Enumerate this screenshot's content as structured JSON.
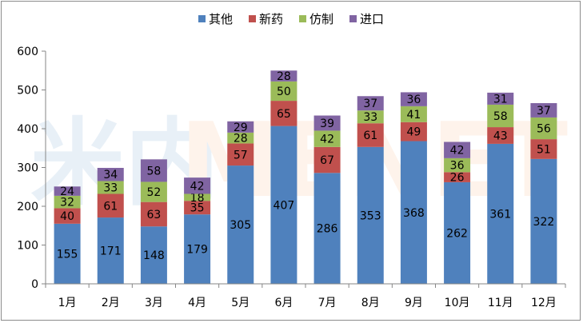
{
  "chart_data": {
    "type": "bar",
    "stacked": true,
    "categories": [
      "1月",
      "2月",
      "3月",
      "4月",
      "5月",
      "6月",
      "7月",
      "8月",
      "9月",
      "10月",
      "11月",
      "12月"
    ],
    "series": [
      {
        "name": "其他",
        "color": "#4f81bd",
        "values": [
          155,
          171,
          148,
          179,
          305,
          407,
          286,
          353,
          368,
          262,
          361,
          322
        ]
      },
      {
        "name": "新药",
        "color": "#c0504d",
        "values": [
          40,
          61,
          63,
          35,
          57,
          65,
          67,
          61,
          49,
          26,
          43,
          51
        ]
      },
      {
        "name": "仿制",
        "color": "#9bbb59",
        "values": [
          32,
          33,
          52,
          18,
          28,
          50,
          42,
          33,
          41,
          36,
          58,
          56
        ]
      },
      {
        "name": "进口",
        "color": "#8064a2",
        "values": [
          24,
          34,
          58,
          42,
          29,
          28,
          39,
          37,
          36,
          42,
          31,
          37
        ]
      }
    ],
    "ylim": [
      0,
      600
    ],
    "yticks": [
      0,
      100,
      200,
      300,
      400,
      500,
      600
    ],
    "grid": false,
    "legend_position": "top",
    "data_labels": true
  },
  "watermark": {
    "text_cjk": "米内",
    "text_latin": "MENET"
  }
}
